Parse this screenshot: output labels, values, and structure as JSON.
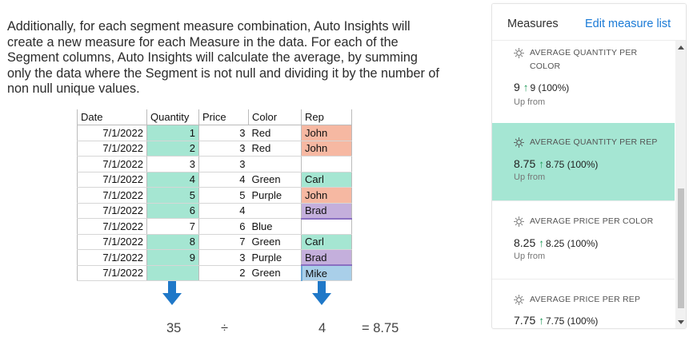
{
  "explanation": "Additionally, for each segment measure combination, Auto Insights will create a new measure for each Measure in the data. For each of the Segment columns, Auto Insights will calculate the average, by summing only the data where the Segment is not null and dividing it by the number of non null unique values.",
  "table": {
    "headers": [
      "Date",
      "Quantity",
      "Price",
      "Color",
      "Rep"
    ],
    "rows": [
      [
        "7/1/2022",
        "1",
        "3",
        "Red",
        "John"
      ],
      [
        "7/1/2022",
        "2",
        "3",
        "Red",
        "John"
      ],
      [
        "7/1/2022",
        "3",
        "3",
        "",
        ""
      ],
      [
        "7/1/2022",
        "4",
        "4",
        "Green",
        "Carl"
      ],
      [
        "7/1/2022",
        "5",
        "5",
        "Purple",
        "John"
      ],
      [
        "7/1/2022",
        "6",
        "4",
        "",
        "Brad"
      ],
      [
        "7/1/2022",
        "7",
        "6",
        "Blue",
        ""
      ],
      [
        "7/1/2022",
        "8",
        "7",
        "Green",
        "Carl"
      ],
      [
        "7/1/2022",
        "9",
        "3",
        "Purple",
        "Brad"
      ],
      [
        "7/1/2022",
        "",
        "2",
        "Green",
        "Mike"
      ]
    ],
    "colors": {
      "qty_fill": "#a5e6d2",
      "john": "#f6b8a2",
      "carl": "#a5e6d2",
      "brad": "#c4afdc",
      "mike": "#a9cfe9"
    }
  },
  "calculation": {
    "sum": "35",
    "divide_sign": "÷",
    "count": "4",
    "result": "= 8.75"
  },
  "panel": {
    "title": "Measures",
    "edit_link": "Edit measure list",
    "accent_color": "#a5e6d3",
    "cards": [
      {
        "name": "AVERAGE QUANTITY PER COLOR",
        "value": "9",
        "change": "9 (100%)",
        "sub": "Up from",
        "active": false
      },
      {
        "name": "AVERAGE QUANTITY PER REP",
        "value": "8.75",
        "change": "8.75 (100%)",
        "sub": "Up from",
        "active": true
      },
      {
        "name": "AVERAGE PRICE PER COLOR",
        "value": "8.25",
        "change": "8.25 (100%)",
        "sub": "Up from",
        "active": false
      },
      {
        "name": "AVERAGE PRICE PER REP",
        "value": "7.75",
        "change": "7.75 (100%)",
        "sub": "",
        "active": false
      }
    ],
    "icons": {
      "measure": "sun-icon",
      "trend": "arrow-up-icon"
    }
  }
}
